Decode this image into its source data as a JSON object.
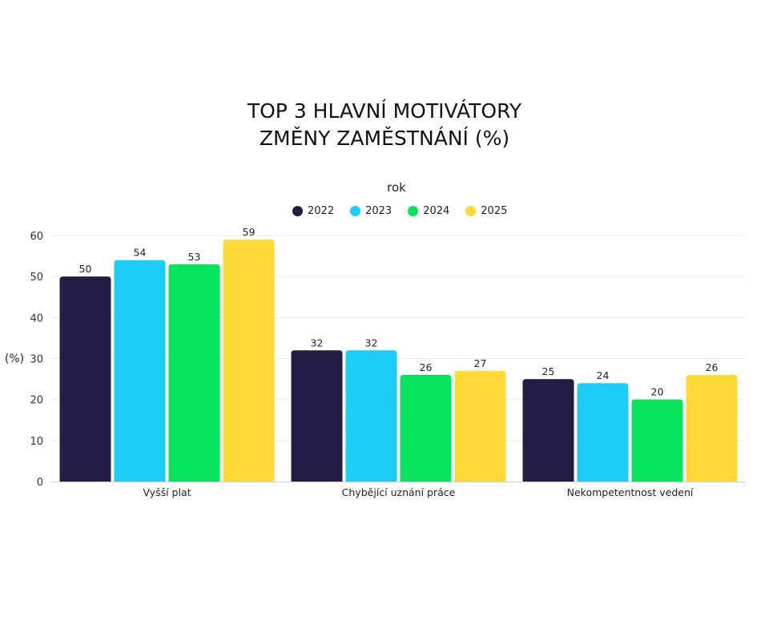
{
  "chart_data": {
    "type": "bar",
    "title_lines": [
      "TOP 3 HLAVNÍ MOTIVÁTORY",
      "ZMĚNY ZAMĚSTNÁNÍ (%)"
    ],
    "legend_title": "rok",
    "legend_position": "top-center",
    "ylabel": "(%)",
    "xlabel": "",
    "ylim": [
      0,
      60
    ],
    "yticks": [
      0,
      10,
      20,
      30,
      40,
      50,
      60
    ],
    "grid": true,
    "categories": [
      "Vyšší plat",
      "Chybějící uznání práce",
      "Nekompetentnost vedení"
    ],
    "series": [
      {
        "name": "2022",
        "color": "#231d45",
        "values": [
          50,
          32,
          25
        ]
      },
      {
        "name": "2023",
        "color": "#1bcdf5",
        "values": [
          54,
          32,
          24
        ]
      },
      {
        "name": "2024",
        "color": "#08e35e",
        "values": [
          53,
          26,
          20
        ]
      },
      {
        "name": "2025",
        "color": "#ffd935",
        "values": [
          59,
          27,
          26
        ]
      }
    ]
  }
}
